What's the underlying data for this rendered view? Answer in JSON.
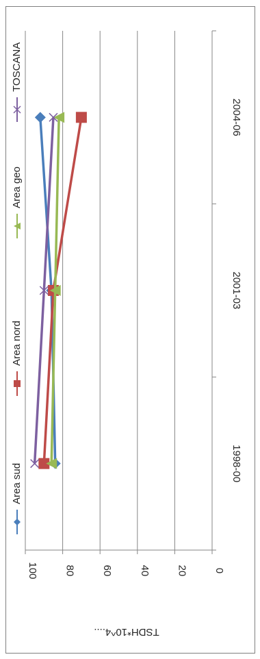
{
  "chart_data": {
    "type": "line",
    "title": "",
    "xlabel": "",
    "ylabel": "TSDH*10^4....",
    "categories": [
      "1998-00",
      "2001-03",
      "2004-06"
    ],
    "ylim": [
      0,
      100
    ],
    "yticks": [
      0,
      20,
      40,
      60,
      80,
      100
    ],
    "grid": true,
    "legend_position": "top",
    "series": [
      {
        "name": "Area sud",
        "values": [
          84,
          86,
          92
        ],
        "color": "#4a7ebb",
        "marker": "diamond"
      },
      {
        "name": "Area nord",
        "values": [
          90,
          85,
          70
        ],
        "color": "#be4b48",
        "marker": "square"
      },
      {
        "name": "Area geo",
        "values": [
          86,
          84,
          82
        ],
        "color": "#98b954",
        "marker": "triangle"
      },
      {
        "name": "TOSCANA",
        "values": [
          95,
          90,
          85
        ],
        "color": "#7d60a0",
        "marker": "x"
      }
    ]
  }
}
